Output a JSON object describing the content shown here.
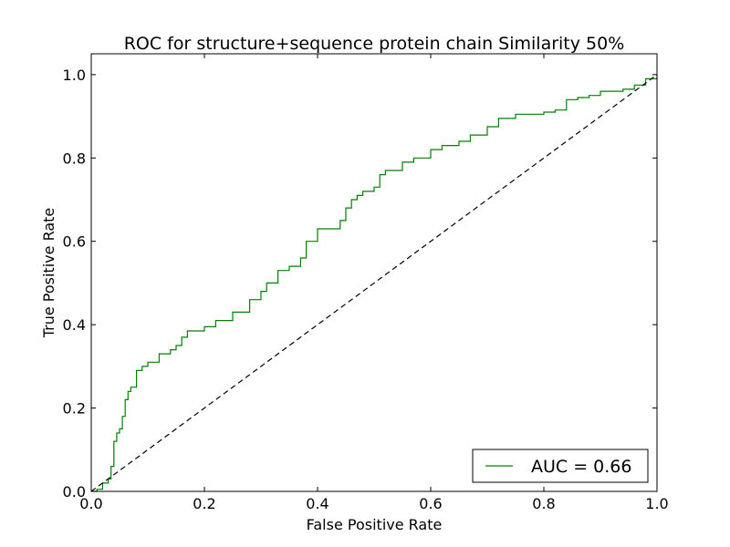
{
  "chart_data": {
    "type": "line",
    "title": "ROC for structure+sequence protein chain Similarity 50%",
    "xlabel": "False Positive Rate",
    "ylabel": "True Positive Rate",
    "xlim": [
      0.0,
      1.0
    ],
    "ylim": [
      0.0,
      1.05
    ],
    "grid": false,
    "legend_position": "bottom-right",
    "x_ticks": [
      "0.0",
      "0.2",
      "0.4",
      "0.6",
      "0.8",
      "1.0"
    ],
    "y_ticks": [
      "0.0",
      "0.2",
      "0.4",
      "0.6",
      "0.8",
      "1.0"
    ],
    "series": [
      {
        "name": "AUC = 0.66",
        "color": "#008000",
        "style": "solid",
        "x": [
          0.0,
          0.01,
          0.02,
          0.03,
          0.035,
          0.04,
          0.045,
          0.05,
          0.055,
          0.06,
          0.065,
          0.07,
          0.08,
          0.09,
          0.1,
          0.12,
          0.14,
          0.15,
          0.16,
          0.17,
          0.2,
          0.22,
          0.25,
          0.28,
          0.3,
          0.31,
          0.33,
          0.35,
          0.37,
          0.38,
          0.39,
          0.4,
          0.42,
          0.44,
          0.45,
          0.46,
          0.47,
          0.48,
          0.5,
          0.51,
          0.52,
          0.55,
          0.57,
          0.6,
          0.62,
          0.65,
          0.67,
          0.7,
          0.72,
          0.75,
          0.78,
          0.8,
          0.82,
          0.84,
          0.86,
          0.88,
          0.9,
          0.92,
          0.94,
          0.96,
          0.98,
          1.0
        ],
        "y": [
          0.0,
          0.005,
          0.02,
          0.03,
          0.06,
          0.12,
          0.14,
          0.15,
          0.18,
          0.22,
          0.24,
          0.25,
          0.29,
          0.3,
          0.31,
          0.33,
          0.34,
          0.35,
          0.37,
          0.385,
          0.395,
          0.41,
          0.43,
          0.46,
          0.48,
          0.5,
          0.53,
          0.54,
          0.56,
          0.6,
          0.6,
          0.63,
          0.63,
          0.65,
          0.68,
          0.7,
          0.71,
          0.72,
          0.73,
          0.76,
          0.77,
          0.79,
          0.8,
          0.82,
          0.83,
          0.84,
          0.855,
          0.875,
          0.895,
          0.905,
          0.905,
          0.91,
          0.915,
          0.94,
          0.945,
          0.95,
          0.96,
          0.96,
          0.965,
          0.975,
          0.99,
          1.0
        ]
      },
      {
        "name": "",
        "color": "#000000",
        "style": "dashed",
        "x": [
          0.0,
          1.0
        ],
        "y": [
          0.0,
          1.0
        ]
      }
    ]
  },
  "legend": {
    "label": "AUC = 0.66"
  }
}
